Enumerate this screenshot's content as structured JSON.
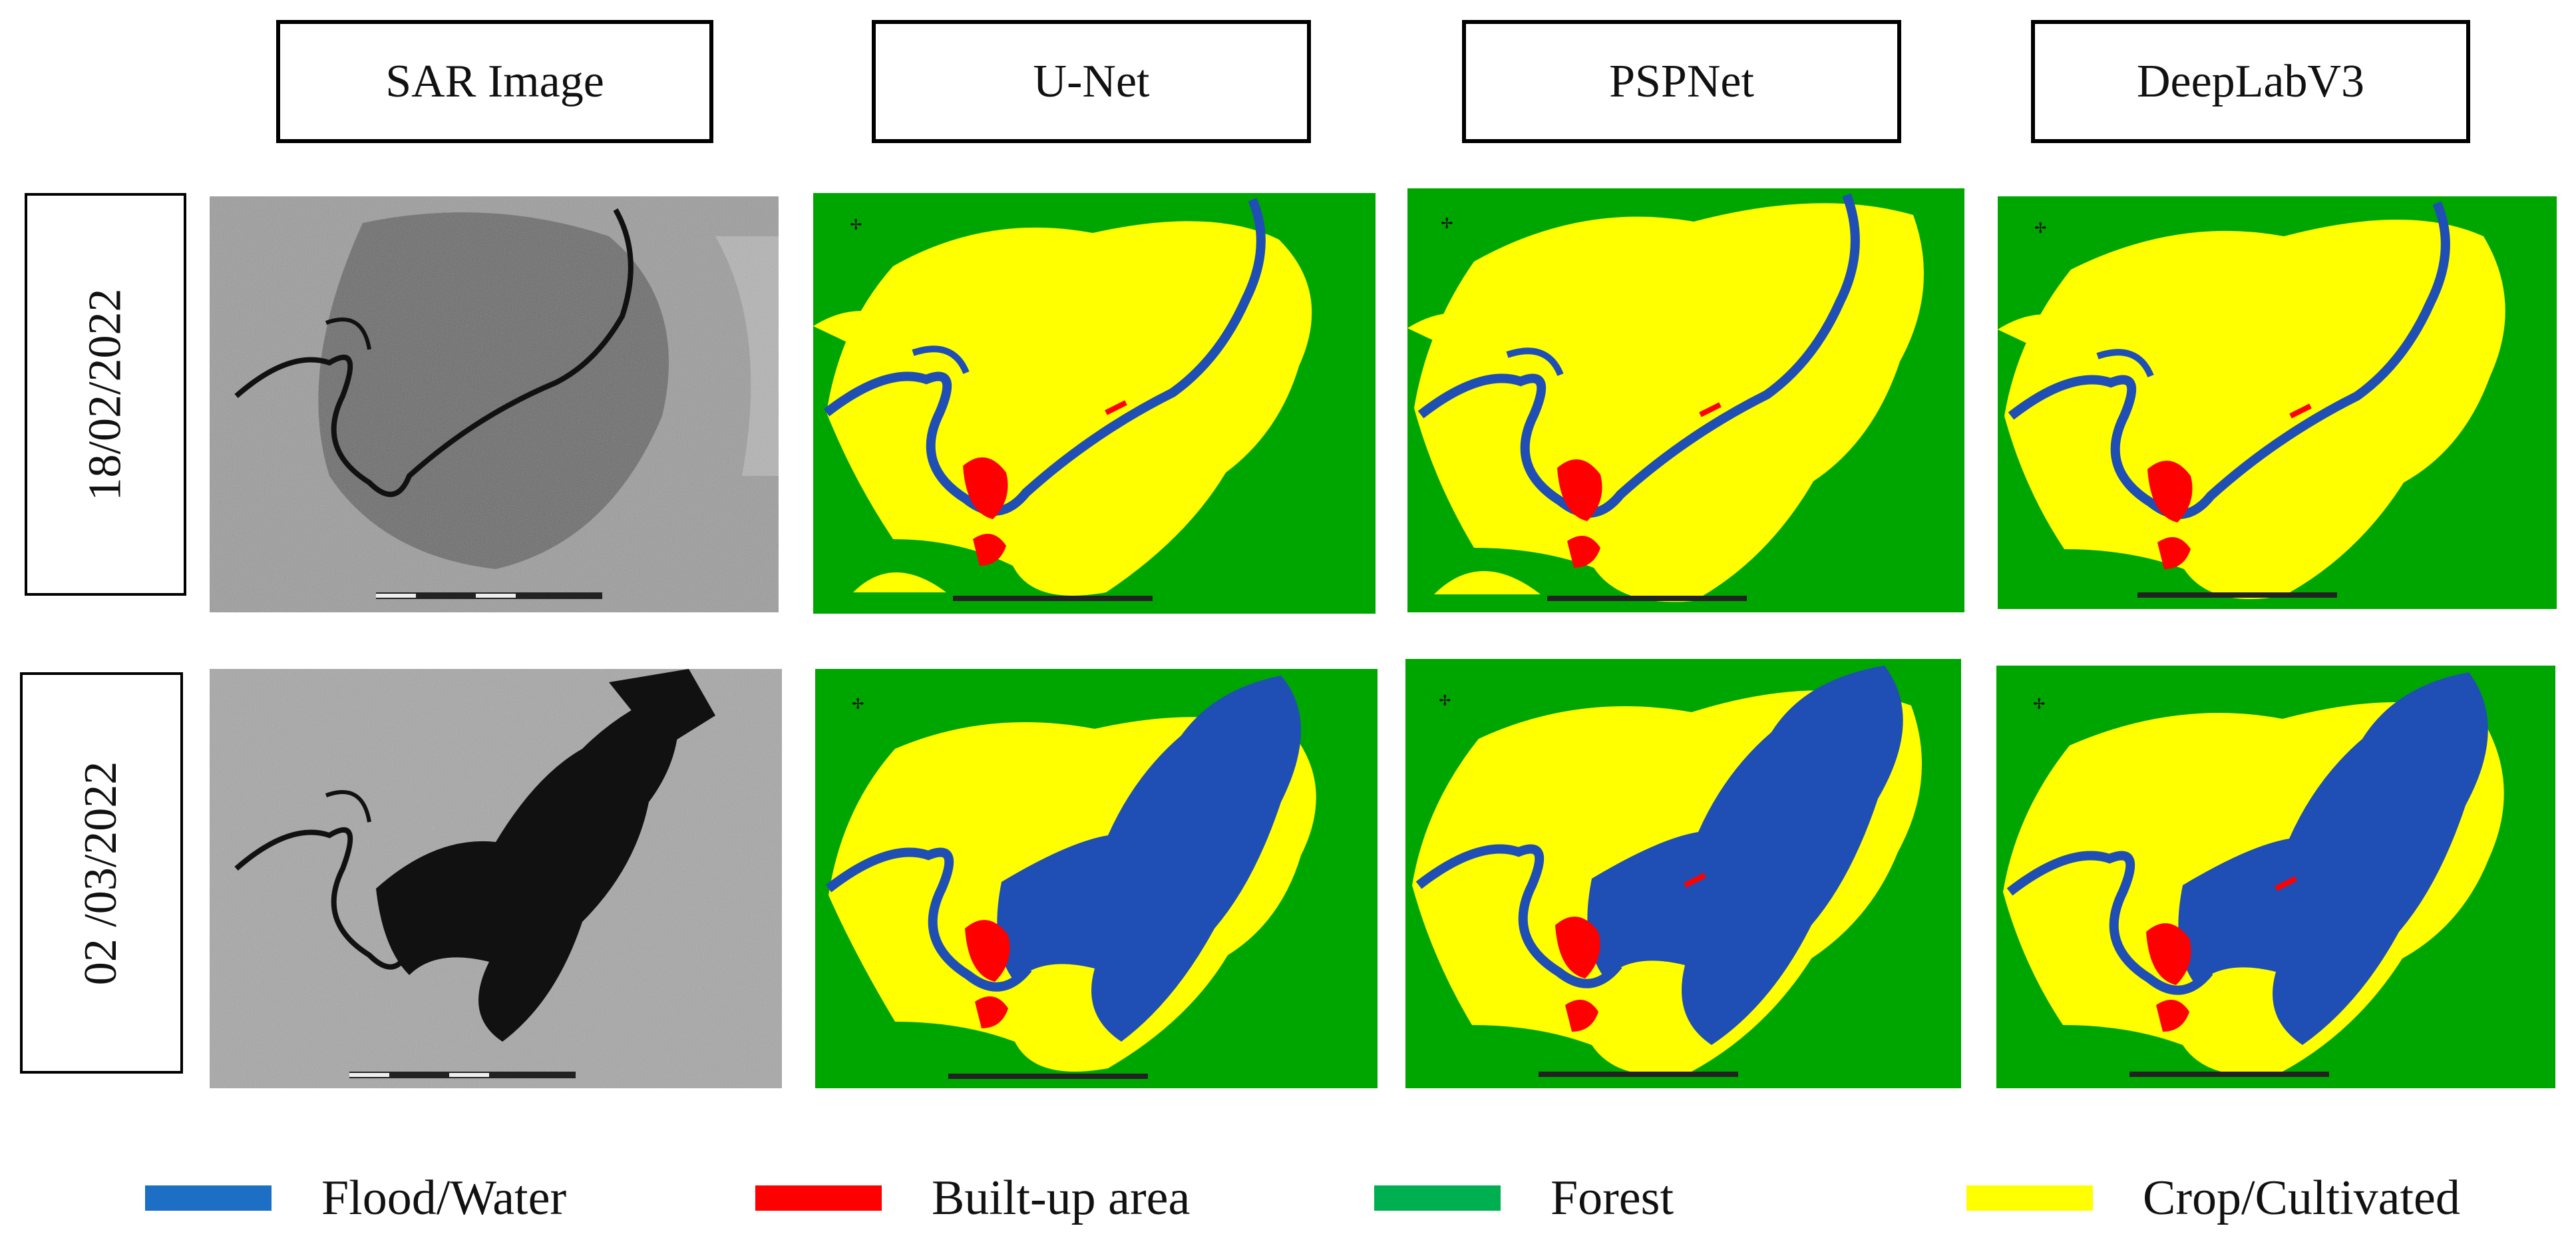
{
  "columns": [
    "SAR Image",
    "U-Net",
    "PSPNet",
    "DeepLabV3"
  ],
  "rows": [
    "18/02/2022",
    "02 /03/2022"
  ],
  "colors": {
    "flood_water": "#1f4fb4",
    "built_up": "#ff0000",
    "forest": "#00a600",
    "crop": "#ffff00"
  },
  "legend": [
    {
      "label": "Flood/Water",
      "color": "#1c6fc4"
    },
    {
      "label": "Built-up area",
      "color": "#ff0000"
    },
    {
      "label": "Forest",
      "color": "#00b050"
    },
    {
      "label": "Crop/Cultivated",
      "color": "#ffff00"
    }
  ]
}
